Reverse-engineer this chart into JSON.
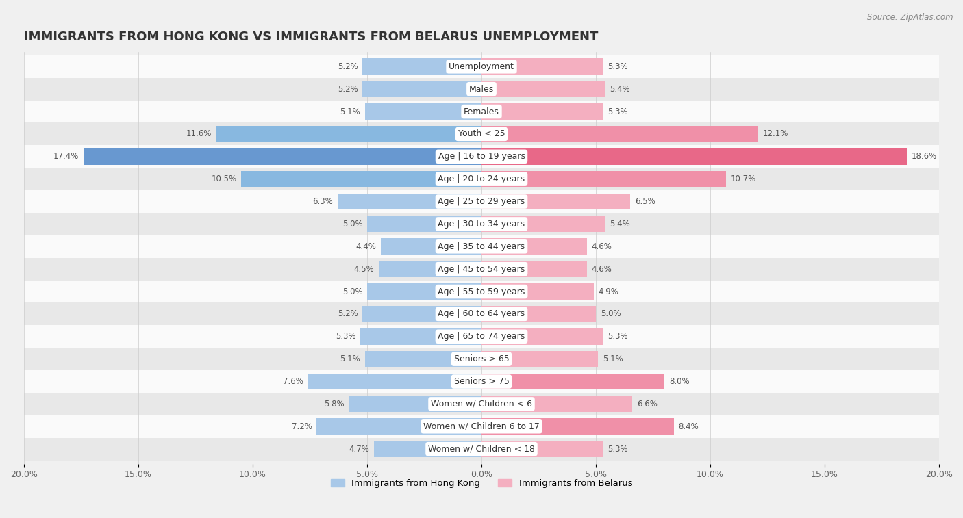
{
  "title": "IMMIGRANTS FROM HONG KONG VS IMMIGRANTS FROM BELARUS UNEMPLOYMENT",
  "source": "Source: ZipAtlas.com",
  "categories": [
    "Unemployment",
    "Males",
    "Females",
    "Youth < 25",
    "Age | 16 to 19 years",
    "Age | 20 to 24 years",
    "Age | 25 to 29 years",
    "Age | 30 to 34 years",
    "Age | 35 to 44 years",
    "Age | 45 to 54 years",
    "Age | 55 to 59 years",
    "Age | 60 to 64 years",
    "Age | 65 to 74 years",
    "Seniors > 65",
    "Seniors > 75",
    "Women w/ Children < 6",
    "Women w/ Children 6 to 17",
    "Women w/ Children < 18"
  ],
  "hong_kong": [
    5.2,
    5.2,
    5.1,
    11.6,
    17.4,
    10.5,
    6.3,
    5.0,
    4.4,
    4.5,
    5.0,
    5.2,
    5.3,
    5.1,
    7.6,
    5.8,
    7.2,
    4.7
  ],
  "belarus": [
    5.3,
    5.4,
    5.3,
    12.1,
    18.6,
    10.7,
    6.5,
    5.4,
    4.6,
    4.6,
    4.9,
    5.0,
    5.3,
    5.1,
    8.0,
    6.6,
    8.4,
    5.3
  ],
  "hk_color_normal": "#a8c8e8",
  "hk_color_medium": "#88b8e0",
  "hk_color_high": "#6898d0",
  "by_color_normal": "#f4afc0",
  "by_color_medium": "#f090a8",
  "by_color_high": "#e86888",
  "xlim": 20.0,
  "bar_height": 0.72,
  "bg_color": "#f0f0f0",
  "row_color_light": "#fafafa",
  "row_color_dark": "#e8e8e8",
  "label_bg": "#ffffff",
  "legend_hk": "Immigrants from Hong Kong",
  "legend_by": "Immigrants from Belarus",
  "title_fontsize": 13,
  "label_fontsize": 9.0,
  "value_fontsize": 8.5,
  "tick_fontsize": 9.0
}
